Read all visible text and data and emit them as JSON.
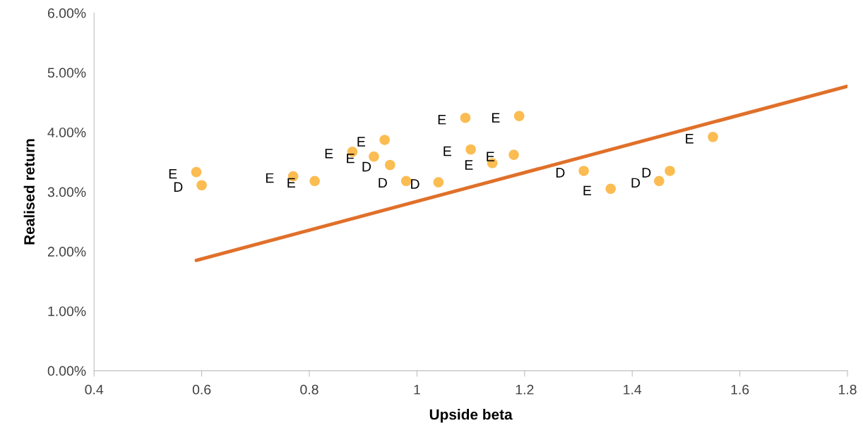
{
  "chart_data": {
    "type": "scatter",
    "xlabel": "Upside beta",
    "ylabel": "Realised return",
    "xlim": [
      0.4,
      1.8
    ],
    "xticks": [
      0.4,
      0.6,
      0.8,
      1,
      1.2,
      1.4,
      1.6,
      1.8
    ],
    "ylim": [
      0,
      6
    ],
    "yticks": [
      {
        "value": 0,
        "label": "0.00%"
      },
      {
        "value": 1,
        "label": "1.00%"
      },
      {
        "value": 2,
        "label": "2.00%"
      },
      {
        "value": 3,
        "label": "3.00%"
      },
      {
        "value": 4,
        "label": "4.00%"
      },
      {
        "value": 5,
        "label": "5.00%"
      },
      {
        "value": 6,
        "label": "6.00%"
      }
    ],
    "grid": false,
    "legend": false,
    "series": [
      {
        "type": "scatter",
        "marker": "circle",
        "color": "#fbbc52",
        "x": [
          0.59,
          0.6,
          0.77,
          0.81,
          0.88,
          0.92,
          0.94,
          0.95,
          0.98,
          1.04,
          1.09,
          1.1,
          1.14,
          1.18,
          1.19,
          1.31,
          1.36,
          1.45,
          1.47,
          1.55
        ],
        "values": [
          3.33,
          3.11,
          3.26,
          3.18,
          3.67,
          3.59,
          3.87,
          3.45,
          3.18,
          3.16,
          4.24,
          3.71,
          3.48,
          3.62,
          4.27,
          3.35,
          3.05,
          3.18,
          3.35,
          3.92
        ],
        "value_labels": [
          "E",
          "D",
          "E",
          "E",
          "E",
          "E",
          "E",
          "D",
          "D",
          "D",
          "E",
          "E",
          "E",
          "E",
          "E",
          "D",
          "E",
          "D",
          "D",
          "E"
        ]
      },
      {
        "type": "line",
        "color": "#e0702a",
        "x": [
          0.59,
          1.8
        ],
        "values": [
          1.85,
          4.77
        ]
      }
    ]
  }
}
